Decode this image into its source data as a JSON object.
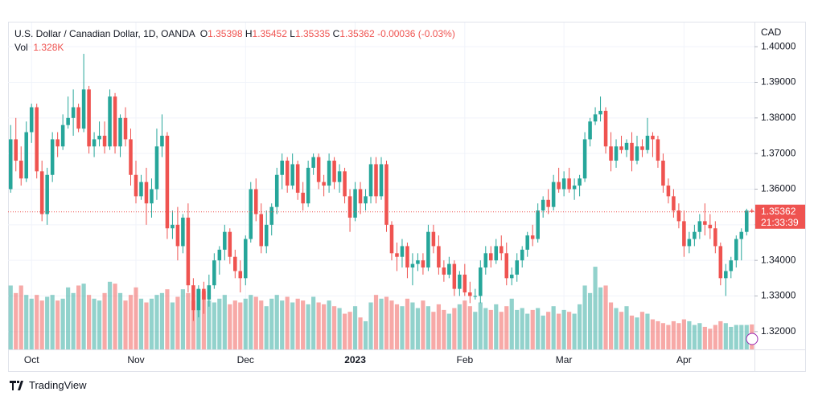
{
  "chart_data": {
    "type": "candlestick",
    "title": "U.S. Dollar / Canadian Dollar, 1D, OANDA",
    "ohlc_letters": [
      "O",
      "H",
      "L",
      "C"
    ],
    "change": -0.00036,
    "change_pct_label": "(-0.03%)",
    "volume_title": "Vol",
    "last_volume_label": "1.328K",
    "currency": "CAD",
    "countdown": "21:33:39",
    "brand": "TradingView",
    "up_color": "#26a69a",
    "down_color": "#ef5350",
    "ylim": [
      1.315,
      1.4068
    ],
    "yticks": [
      {
        "value": 1.32,
        "label": "1.32000"
      },
      {
        "value": 1.33,
        "label": "1.33000"
      },
      {
        "value": 1.34,
        "label": "1.34000"
      },
      {
        "value": 1.35,
        "label": "1.35000"
      },
      {
        "value": 1.36,
        "label": "1.36000"
      },
      {
        "value": 1.37,
        "label": "1.37000"
      },
      {
        "value": 1.38,
        "label": "1.38000"
      },
      {
        "value": 1.39,
        "label": "1.39000"
      },
      {
        "value": 1.4,
        "label": "1.40000"
      }
    ],
    "volume_lim": [
      0,
      17.4
    ],
    "grid": true,
    "categories": [
      null,
      null,
      null,
      null,
      "Oct",
      null,
      null,
      null,
      null,
      null,
      null,
      null,
      null,
      null,
      null,
      null,
      null,
      null,
      null,
      null,
      null,
      null,
      null,
      null,
      "Nov",
      null,
      null,
      null,
      null,
      null,
      null,
      null,
      null,
      null,
      null,
      null,
      null,
      null,
      null,
      null,
      null,
      null,
      null,
      null,
      null,
      "Dec",
      null,
      null,
      null,
      null,
      null,
      null,
      null,
      null,
      null,
      null,
      null,
      null,
      null,
      null,
      null,
      null,
      null,
      null,
      null,
      null,
      "2023",
      null,
      null,
      null,
      null,
      null,
      null,
      null,
      null,
      null,
      null,
      null,
      null,
      null,
      null,
      null,
      null,
      null,
      null,
      null,
      null,
      "Feb",
      null,
      null,
      null,
      null,
      null,
      null,
      null,
      null,
      null,
      null,
      null,
      null,
      null,
      null,
      null,
      null,
      null,
      null,
      "Mar",
      null,
      null,
      null,
      null,
      null,
      null,
      null,
      null,
      null,
      null,
      null,
      null,
      null,
      null,
      null,
      null,
      null,
      null,
      null,
      null,
      null,
      null,
      "Apr",
      null,
      null,
      null,
      null,
      null,
      null,
      null,
      null,
      null,
      null,
      null,
      null,
      null
    ],
    "open": [
      1.36,
      1.374,
      1.368,
      1.363,
      1.376,
      1.383,
      1.365,
      1.353,
      1.364,
      1.374,
      1.372,
      1.378,
      1.38,
      1.383,
      1.377,
      1.388,
      1.372,
      1.374,
      1.375,
      1.372,
      1.386,
      1.372,
      1.38,
      1.374,
      1.364,
      1.358,
      1.362,
      1.356,
      1.36,
      1.372,
      1.375,
      1.349,
      1.35,
      1.344,
      1.352,
      1.333,
      1.326,
      1.332,
      1.329,
      1.333,
      1.34,
      1.343,
      1.348,
      1.341,
      1.337,
      1.335,
      1.346,
      1.36,
      1.353,
      1.344,
      1.35,
      1.355,
      1.364,
      1.368,
      1.361,
      1.367,
      1.359,
      1.356,
      1.366,
      1.369,
      1.362,
      1.361,
      1.368,
      1.362,
      1.365,
      1.358,
      1.352,
      1.36,
      1.356,
      1.358,
      1.367,
      1.358,
      1.367,
      1.35,
      1.342,
      1.341,
      1.344,
      1.338,
      1.339,
      1.34,
      1.338,
      1.348,
      1.344,
      1.338,
      1.336,
      1.339,
      1.332,
      1.336,
      1.331,
      1.33,
      1.33,
      1.338,
      1.342,
      1.34,
      1.344,
      1.342,
      1.335,
      1.336,
      1.34,
      1.343,
      1.347,
      1.346,
      1.354,
      1.357,
      1.355,
      1.362,
      1.36,
      1.363,
      1.36,
      1.361,
      1.363,
      1.374,
      1.379,
      1.381,
      1.382,
      1.372,
      1.368,
      1.372,
      1.371,
      1.373,
      1.368,
      1.372,
      1.371,
      1.375,
      1.374,
      1.368,
      1.361,
      1.358,
      1.354,
      1.351,
      1.344,
      1.346,
      1.348,
      1.351,
      1.35,
      1.349,
      1.344,
      1.335,
      1.337,
      1.34,
      1.346,
      1.348,
      1.35398
    ],
    "high": [
      1.378,
      1.38,
      1.372,
      1.379,
      1.384,
      1.384,
      1.368,
      1.366,
      1.376,
      1.376,
      1.381,
      1.386,
      1.388,
      1.384,
      1.398,
      1.389,
      1.376,
      1.379,
      1.379,
      1.388,
      1.387,
      1.381,
      1.383,
      1.377,
      1.368,
      1.364,
      1.366,
      1.363,
      1.377,
      1.381,
      1.376,
      1.354,
      1.355,
      1.353,
      1.356,
      1.335,
      1.333,
      1.334,
      1.336,
      1.342,
      1.344,
      1.35,
      1.349,
      1.343,
      1.34,
      1.347,
      1.362,
      1.363,
      1.356,
      1.354,
      1.356,
      1.366,
      1.37,
      1.369,
      1.37,
      1.368,
      1.362,
      1.368,
      1.37,
      1.37,
      1.364,
      1.37,
      1.369,
      1.367,
      1.366,
      1.36,
      1.362,
      1.362,
      1.36,
      1.369,
      1.369,
      1.369,
      1.368,
      1.351,
      1.345,
      1.346,
      1.345,
      1.342,
      1.342,
      1.342,
      1.35,
      1.35,
      1.347,
      1.34,
      1.341,
      1.34,
      1.337,
      1.339,
      1.334,
      1.332,
      1.34,
      1.344,
      1.344,
      1.346,
      1.347,
      1.345,
      1.338,
      1.342,
      1.344,
      1.348,
      1.35,
      1.356,
      1.358,
      1.36,
      1.364,
      1.366,
      1.365,
      1.366,
      1.363,
      1.364,
      1.376,
      1.38,
      1.383,
      1.386,
      1.383,
      1.376,
      1.374,
      1.375,
      1.374,
      1.376,
      1.375,
      1.374,
      1.38,
      1.376,
      1.375,
      1.37,
      1.363,
      1.36,
      1.356,
      1.354,
      1.348,
      1.35,
      1.353,
      1.356,
      1.353,
      1.351,
      1.345,
      1.339,
      1.341,
      1.347,
      1.349,
      1.3545,
      1.35452
    ],
    "low": [
      1.359,
      1.365,
      1.361,
      1.362,
      1.373,
      1.363,
      1.351,
      1.35,
      1.362,
      1.369,
      1.371,
      1.377,
      1.375,
      1.376,
      1.376,
      1.37,
      1.369,
      1.372,
      1.37,
      1.371,
      1.37,
      1.369,
      1.372,
      1.361,
      1.356,
      1.357,
      1.35,
      1.352,
      1.357,
      1.369,
      1.346,
      1.346,
      1.34,
      1.342,
      1.331,
      1.323,
      1.324,
      1.325,
      1.327,
      1.332,
      1.336,
      1.34,
      1.339,
      1.335,
      1.331,
      1.333,
      1.345,
      1.351,
      1.342,
      1.342,
      1.347,
      1.353,
      1.36,
      1.359,
      1.36,
      1.357,
      1.354,
      1.355,
      1.364,
      1.36,
      1.358,
      1.359,
      1.36,
      1.359,
      1.356,
      1.348,
      1.351,
      1.353,
      1.354,
      1.356,
      1.356,
      1.357,
      1.348,
      1.34,
      1.337,
      1.338,
      1.335,
      1.333,
      1.337,
      1.336,
      1.337,
      1.342,
      1.336,
      1.334,
      1.335,
      1.33,
      1.33,
      1.33,
      1.328,
      1.329,
      1.328,
      1.336,
      1.338,
      1.339,
      1.34,
      1.333,
      1.333,
      1.334,
      1.338,
      1.341,
      1.344,
      1.345,
      1.352,
      1.353,
      1.354,
      1.359,
      1.358,
      1.359,
      1.357,
      1.358,
      1.362,
      1.372,
      1.378,
      1.379,
      1.37,
      1.365,
      1.366,
      1.37,
      1.369,
      1.365,
      1.367,
      1.369,
      1.37,
      1.369,
      1.366,
      1.359,
      1.356,
      1.352,
      1.349,
      1.341,
      1.342,
      1.344,
      1.346,
      1.347,
      1.346,
      1.342,
      1.333,
      1.33,
      1.335,
      1.338,
      1.34,
      1.347,
      1.35335
    ],
    "close": [
      1.374,
      1.368,
      1.363,
      1.376,
      1.383,
      1.365,
      1.353,
      1.364,
      1.374,
      1.372,
      1.378,
      1.38,
      1.383,
      1.377,
      1.388,
      1.372,
      1.374,
      1.375,
      1.372,
      1.386,
      1.372,
      1.38,
      1.374,
      1.364,
      1.358,
      1.362,
      1.356,
      1.36,
      1.372,
      1.375,
      1.349,
      1.35,
      1.344,
      1.352,
      1.333,
      1.326,
      1.332,
      1.329,
      1.333,
      1.34,
      1.343,
      1.348,
      1.341,
      1.337,
      1.335,
      1.346,
      1.36,
      1.353,
      1.344,
      1.35,
      1.355,
      1.364,
      1.368,
      1.361,
      1.367,
      1.359,
      1.356,
      1.366,
      1.369,
      1.362,
      1.361,
      1.368,
      1.362,
      1.365,
      1.358,
      1.352,
      1.36,
      1.356,
      1.358,
      1.367,
      1.358,
      1.367,
      1.35,
      1.342,
      1.341,
      1.344,
      1.338,
      1.339,
      1.34,
      1.338,
      1.348,
      1.344,
      1.338,
      1.336,
      1.339,
      1.332,
      1.336,
      1.331,
      1.33,
      1.33,
      1.338,
      1.342,
      1.34,
      1.344,
      1.342,
      1.335,
      1.336,
      1.34,
      1.343,
      1.347,
      1.346,
      1.354,
      1.357,
      1.355,
      1.362,
      1.36,
      1.363,
      1.36,
      1.361,
      1.363,
      1.374,
      1.379,
      1.381,
      1.382,
      1.372,
      1.368,
      1.372,
      1.371,
      1.373,
      1.368,
      1.372,
      1.371,
      1.375,
      1.374,
      1.368,
      1.361,
      1.358,
      1.354,
      1.351,
      1.344,
      1.346,
      1.348,
      1.351,
      1.35,
      1.349,
      1.344,
      1.335,
      1.337,
      1.34,
      1.346,
      1.348,
      1.35398,
      1.35362
    ],
    "volume": [
      3.4,
      3.0,
      3.4,
      2.9,
      2.7,
      2.9,
      2.6,
      2.8,
      2.9,
      2.6,
      2.7,
      3.3,
      3.0,
      3.4,
      3.5,
      2.9,
      2.7,
      2.6,
      3.0,
      3.6,
      3.5,
      3.0,
      2.6,
      2.9,
      3.3,
      2.7,
      2.5,
      2.7,
      2.9,
      3.0,
      3.2,
      2.5,
      2.8,
      3.2,
      3.0,
      2.6,
      3.2,
      3.1,
      2.6,
      2.5,
      2.7,
      2.9,
      2.4,
      2.6,
      2.5,
      2.7,
      2.9,
      2.8,
      2.6,
      2.3,
      2.7,
      2.9,
      2.6,
      2.8,
      2.5,
      2.7,
      2.6,
      2.4,
      2.8,
      2.5,
      2.4,
      2.6,
      2.3,
      2.2,
      1.9,
      2.0,
      2.3,
      1.7,
      1.5,
      2.5,
      2.9,
      2.7,
      2.8,
      2.6,
      2.4,
      2.3,
      2.7,
      2.5,
      2.2,
      2.6,
      2.3,
      2.0,
      2.4,
      2.1,
      1.9,
      2.2,
      2.4,
      2.6,
      2.3,
      2.0,
      2.5,
      2.2,
      2.1,
      2.4,
      2.0,
      2.3,
      2.7,
      2.1,
      2.2,
      1.9,
      2.1,
      2.2,
      1.8,
      2.0,
      2.3,
      1.9,
      2.1,
      2.0,
      1.9,
      2.4,
      3.4,
      3.0,
      4.4,
      3.3,
      3.4,
      2.5,
      2.2,
      2.0,
      2.3,
      1.8,
      1.7,
      2.0,
      1.9,
      1.6,
      1.5,
      1.4,
      1.3,
      1.5,
      1.4,
      1.6,
      1.5,
      1.3,
      1.4,
      1.2,
      1.1,
      1.3,
      1.5,
      1.4,
      1.2,
      1.3,
      1.3,
      1.3,
      1.328
    ]
  }
}
